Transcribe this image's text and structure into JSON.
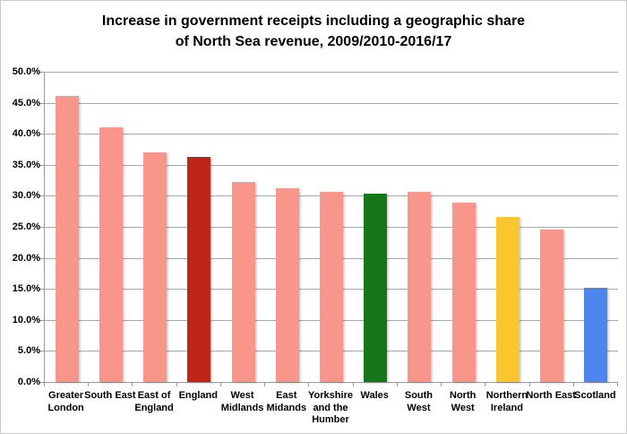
{
  "chart_data": {
    "type": "bar",
    "title_line1": "Increase in government receipts including a geographic share",
    "title_line2": "of North Sea revenue, 2009/2010-2016/17",
    "categories": [
      "Greater London",
      "South East",
      "East of England",
      "England",
      "West Midlands",
      "East Midands",
      "Yorkshire and the Humber",
      "Wales",
      "South West",
      "North West",
      "Northern Ireland",
      "North East",
      "Scotland"
    ],
    "values": [
      46.1,
      41.0,
      37.0,
      36.3,
      32.2,
      31.2,
      30.7,
      30.4,
      30.6,
      28.9,
      26.6,
      24.6,
      15.2
    ],
    "bar_colors": [
      "#F8968B",
      "#F8968B",
      "#F8968B",
      "#BE2418",
      "#F8968B",
      "#F8968B",
      "#F8968B",
      "#16771A",
      "#F8968B",
      "#F8968B",
      "#FAC62E",
      "#F8968B",
      "#4C86EC"
    ],
    "ylim": [
      0,
      50
    ],
    "ytick_step": 5,
    "ytick_labels": [
      "0.0%",
      "5.0%",
      "10.0%",
      "15.0%",
      "20.0%",
      "25.0%",
      "30.0%",
      "35.0%",
      "40.0%",
      "45.0%",
      "50.0%"
    ],
    "xlabel": "",
    "ylabel": "",
    "grid": true,
    "legend": "none"
  },
  "colors": {
    "pink_default_bar": "#F8968B",
    "england_bar": "#BE2418",
    "wales_bar": "#16771A",
    "northern_ireland_bar": "#FAC62E",
    "scotland_bar": "#4C86EC",
    "gridline": "#A8A8A8",
    "axis": "#9A9A9A",
    "frame_border": "#C9C9C9",
    "background": "#FFFFFF",
    "text": "#000000"
  }
}
